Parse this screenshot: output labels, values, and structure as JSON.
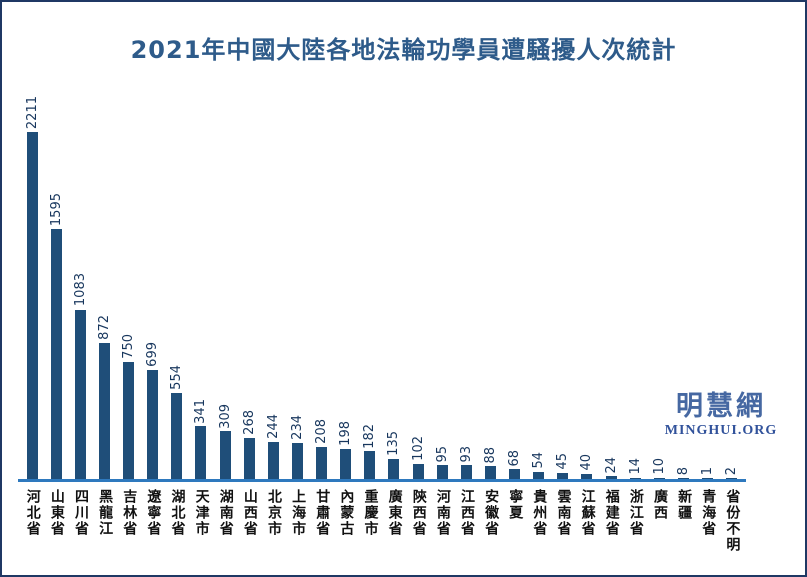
{
  "title": "2021年中國大陸各地法輪功學員遭騷擾人次統計",
  "logo": {
    "cn": "明慧網",
    "en": "MINGHUI.ORG"
  },
  "colors": {
    "bar": "#1F4E79",
    "axis": "#2E79BE",
    "title": "#2E5B8A",
    "value_label": "#17365D",
    "category_label": "#111111",
    "border": "#1F3864",
    "logo_cn": "#4668A2",
    "logo_en": "#31529B",
    "background": "#FFFFFF"
  },
  "chart_data": {
    "type": "bar",
    "title": "2021年中國大陸各地法輪功學員遭騷擾人次統計",
    "xlabel": "",
    "ylabel": "",
    "ylim": [
      0,
      2211
    ],
    "grid": false,
    "legend": "none",
    "value_labels_rotation": 90,
    "category_labels_orientation": "vertical-upright",
    "categories": [
      "河北省",
      "山東省",
      "四川省",
      "黑龍江",
      "吉林省",
      "遼寧省",
      "湖北省",
      "天津市",
      "湖南省",
      "山西省",
      "北京市",
      "上海市",
      "甘肅省",
      "內蒙古",
      "重慶市",
      "廣東省",
      "陝西省",
      "河南省",
      "江西省",
      "安徽省",
      "寧夏",
      "貴州省",
      "雲南省",
      "江蘇省",
      "福建省",
      "浙江省",
      "廣西",
      "新疆",
      "青海省",
      "省份不明"
    ],
    "values": [
      2211,
      1595,
      1083,
      872,
      750,
      699,
      554,
      341,
      309,
      268,
      244,
      234,
      208,
      198,
      182,
      135,
      102,
      95,
      93,
      88,
      68,
      54,
      45,
      40,
      24,
      14,
      10,
      8,
      1,
      2
    ]
  }
}
